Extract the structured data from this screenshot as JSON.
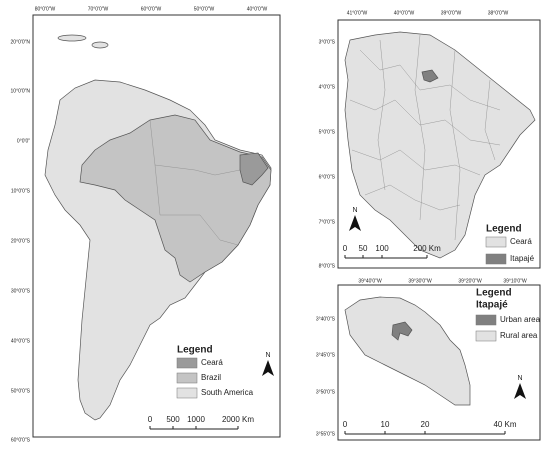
{
  "panels": [
    {
      "top_labels": [
        "80°0'0\"W",
        "70°0'0\"W",
        "60°0'0\"W",
        "50°0'0\"W",
        "40°0'0\"W"
      ],
      "left_labels": [
        "20°0'0\"N",
        "10°0'0\"N",
        "0°0'0\"",
        "10°0'0\"S",
        "20°0'0\"S",
        "30°0'0\"S",
        "40°0'0\"S",
        "50°0'0\"S",
        "60°0'0\"S"
      ],
      "legend": {
        "title": "Legend",
        "items": [
          {
            "label": "Ceará",
            "color": "#9a9a9a"
          },
          {
            "label": "Brazil",
            "color": "#c4c4c4"
          },
          {
            "label": "South America",
            "color": "#e2e2e2"
          }
        ]
      },
      "scale_labels": [
        "0",
        "500",
        "1000",
        "2000 Km"
      ],
      "north": "N"
    },
    {
      "top_labels": [
        "41°0'0\"W",
        "40°0'0\"W",
        "39°0'0\"W",
        "38°0'0\"W"
      ],
      "left_labels": [
        "3°0'0\"S",
        "4°0'0\"S",
        "5°0'0\"S",
        "6°0'0\"S",
        "7°0'0\"S",
        "8°0'0\"S"
      ],
      "legend": {
        "title": "Legend",
        "items": [
          {
            "label": "Ceará",
            "color": "#e2e2e2"
          },
          {
            "label": "Itapajé",
            "color": "#808080"
          }
        ]
      },
      "scale_labels": [
        "0",
        "50",
        "100",
        "200 Km"
      ],
      "north": "N"
    },
    {
      "top_labels": [
        "39°40'0\"W",
        "39°30'0\"W",
        "39°20'0\"W",
        "39°10'0\"W"
      ],
      "left_labels": [
        "3°40'0\"S",
        "3°45'0\"S",
        "3°50'0\"S",
        "3°55'0\"S"
      ],
      "legend": {
        "title": "Legend",
        "subtitle": "Itapajé",
        "items": [
          {
            "label": "Urban area",
            "color": "#808080"
          },
          {
            "label": "Rural area",
            "color": "#e2e2e2"
          }
        ]
      },
      "scale_labels": [
        "0",
        "10",
        "20",
        "40 Km"
      ],
      "north": "N"
    }
  ]
}
